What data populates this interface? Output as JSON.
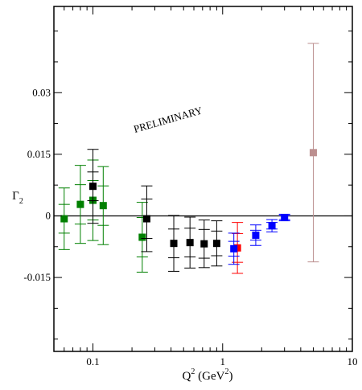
{
  "chart_data": {
    "type": "scatter",
    "xscale": "log",
    "xlim": [
      0.05,
      10
    ],
    "ylim": [
      -0.033,
      0.051
    ],
    "grid": false,
    "x_ticks": [
      {
        "value": 0.1,
        "label": "0.1"
      },
      {
        "value": 1,
        "label": "1"
      },
      {
        "value": 10,
        "label": "10"
      }
    ],
    "y_ticks": [
      {
        "value": -0.015,
        "label": "-0.015"
      },
      {
        "value": 0,
        "label": "0"
      },
      {
        "value": 0.015,
        "label": "0.015"
      },
      {
        "value": 0.03,
        "label": "0.03"
      }
    ],
    "xlabel": {
      "main": "Q",
      "sup": "2",
      "unit_open": " (GeV",
      "unit_sup": "2",
      "unit_close": ")"
    },
    "ylabel": {
      "main": "Γ",
      "sub": "2"
    },
    "annotation": "PRELIMINARY",
    "zero_line": 0,
    "series": [
      {
        "color": "#008000",
        "points": [
          {
            "x": 0.06,
            "y": -0.0007,
            "err": 0.0035,
            "err_total": 0.0075
          },
          {
            "x": 0.08,
            "y": 0.0028,
            "err": 0.0048,
            "err_total": 0.0095
          },
          {
            "x": 0.1,
            "y": 0.0038,
            "err": 0.0048,
            "err_total": 0.0098
          },
          {
            "x": 0.12,
            "y": 0.0025,
            "err": 0.0048,
            "err_total": 0.0095
          },
          {
            "x": 0.24,
            "y": -0.0052,
            "err": 0.0048,
            "err_total": 0.0085
          }
        ]
      },
      {
        "color": "#000000",
        "points": [
          {
            "x": 0.1,
            "y": 0.0072,
            "err": 0.0035,
            "err_total": 0.009
          },
          {
            "x": 0.26,
            "y": -0.0007,
            "err": 0.0048,
            "err_total": 0.008
          },
          {
            "x": 0.42,
            "y": -0.0067,
            "err": 0.0035,
            "err_total": 0.0068
          },
          {
            "x": 0.56,
            "y": -0.0065,
            "err": 0.0035,
            "err_total": 0.0062
          },
          {
            "x": 0.72,
            "y": -0.0068,
            "err": 0.0035,
            "err_total": 0.0058
          },
          {
            "x": 0.9,
            "y": -0.0067,
            "err": 0.003,
            "err_total": 0.0055
          }
        ]
      },
      {
        "color": "#ff0000",
        "points": [
          {
            "x": 1.3,
            "y": -0.0078,
            "err": 0.0035,
            "err_total": 0.0062
          }
        ]
      },
      {
        "color": "#0000ff",
        "points": [
          {
            "x": 1.22,
            "y": -0.008,
            "err": 0.0018,
            "err_total": 0.0038
          },
          {
            "x": 1.8,
            "y": -0.0047,
            "err": 0.0012,
            "err_total": 0.0025
          },
          {
            "x": 2.4,
            "y": -0.0024,
            "err": 0.0008,
            "err_total": 0.0015
          },
          {
            "x": 3.0,
            "y": -0.0004,
            "err": 0.0005,
            "err_total": 0.0008
          }
        ]
      },
      {
        "color": "#bc8f8f",
        "points": [
          {
            "x": 5.0,
            "y": 0.0154,
            "err": 0.0,
            "err_total": 0.0266
          }
        ]
      }
    ]
  }
}
